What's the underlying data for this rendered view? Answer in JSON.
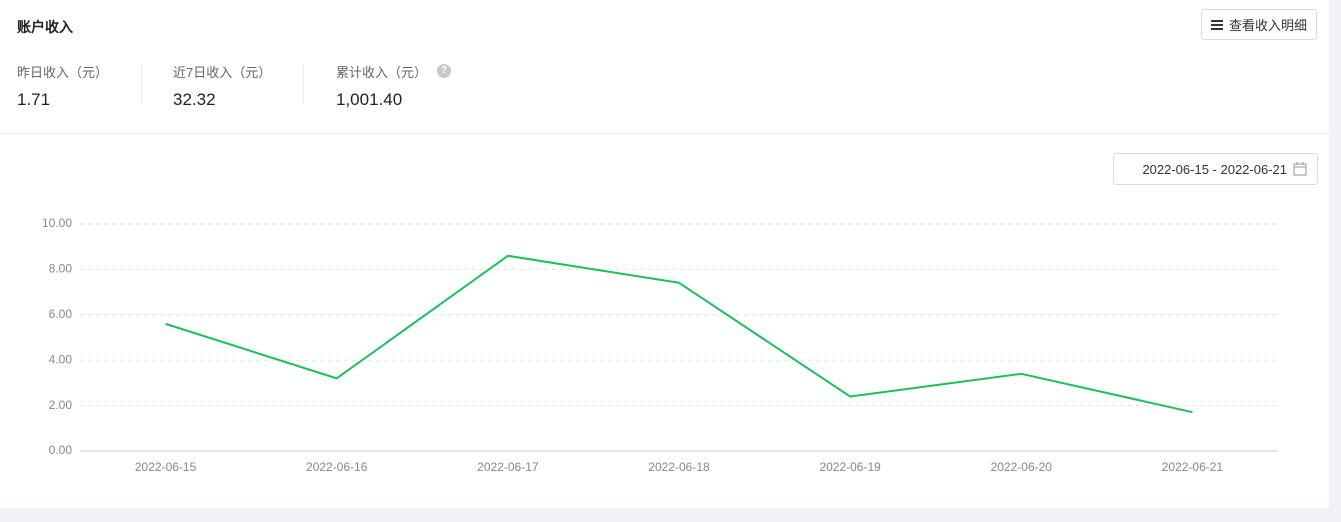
{
  "header": {
    "title": "账户收入",
    "button": "查看收入明细"
  },
  "stats": [
    {
      "label": "昨日收入（元）",
      "value": "1.71"
    },
    {
      "label": "近7日收入（元）",
      "value": "32.32"
    },
    {
      "label": "累计收入（元）",
      "value": "1,001.40"
    }
  ],
  "date_range": "2022-06-15 - 2022-06-21",
  "chart_data": {
    "type": "line",
    "categories": [
      "2022-06-15",
      "2022-06-16",
      "2022-06-17",
      "2022-06-18",
      "2022-06-19",
      "2022-06-20",
      "2022-06-21"
    ],
    "series": [
      {
        "color": "#1dbf60",
        "values": [
          5.6,
          3.2,
          8.6,
          7.41,
          2.4,
          3.4,
          1.71
        ]
      }
    ],
    "ylim": [
      0,
      10
    ],
    "yticks": [
      {
        "value": 0,
        "label": "0.00"
      },
      {
        "value": 2,
        "label": "2.00"
      },
      {
        "value": 4,
        "label": "4.00"
      },
      {
        "value": 6,
        "label": "6.00"
      },
      {
        "value": 8,
        "label": "8.00"
      },
      {
        "value": 10,
        "label": "10.00"
      }
    ],
    "grid": true
  }
}
